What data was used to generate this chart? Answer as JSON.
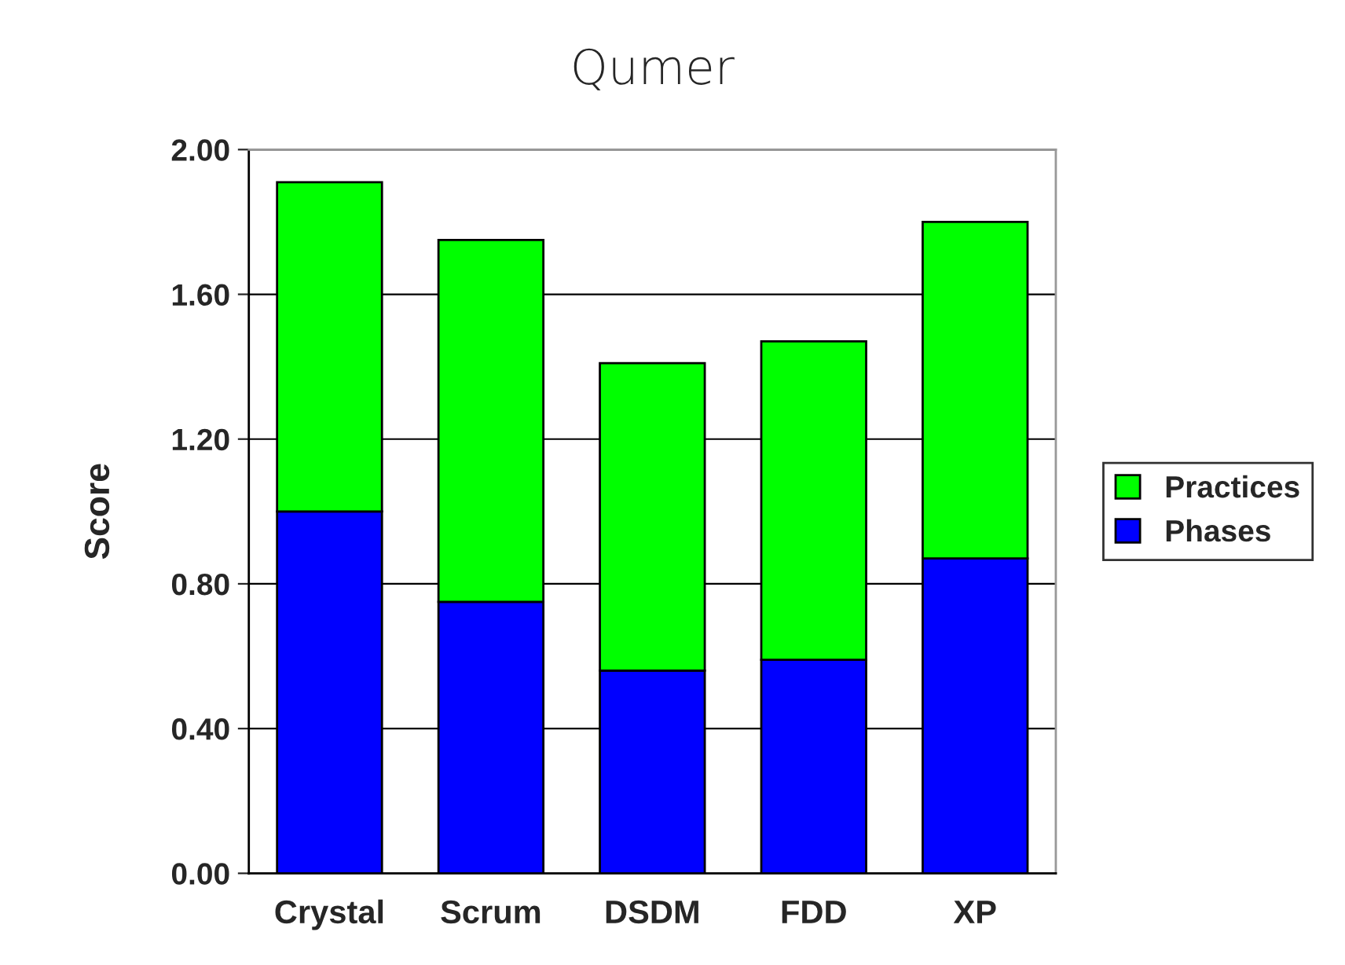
{
  "chart_data": {
    "type": "bar",
    "title": "Qumer",
    "ylabel": "Score",
    "categories": [
      "Crystal",
      "Scrum",
      "DSDM",
      "FDD",
      "XP"
    ],
    "series": [
      {
        "name": "Phases",
        "color": "#0000ff",
        "values": [
          1.0,
          0.75,
          0.56,
          0.59,
          0.87
        ]
      },
      {
        "name": "Practices",
        "color": "#00ff00",
        "values": [
          0.91,
          1.0,
          0.85,
          0.88,
          0.93
        ]
      }
    ],
    "stacked": true,
    "ylim": [
      0,
      2.0
    ],
    "yticks": [
      {
        "value": 0,
        "label": "0.00"
      },
      {
        "value": 0.4,
        "label": "0.40"
      },
      {
        "value": 0.8,
        "label": "0.80"
      },
      {
        "value": 1.2,
        "label": "1.20"
      },
      {
        "value": 1.6,
        "label": "1.60"
      },
      {
        "value": 2.0,
        "label": "2.00"
      }
    ],
    "grid": "y",
    "legend": "right"
  }
}
